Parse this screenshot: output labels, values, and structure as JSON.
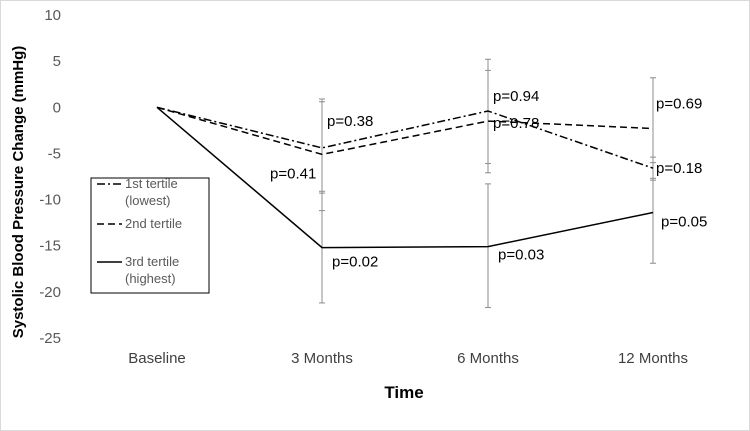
{
  "chart_data": {
    "type": "line",
    "title": "",
    "xlabel": "Time",
    "ylabel": "Systolic Blood Pressure Change (mmHg)",
    "categories": [
      "Baseline",
      "3 Months",
      "6 Months",
      "12 Months"
    ],
    "ylim": [
      -25,
      10
    ],
    "yticks": [
      10,
      5,
      0,
      -5,
      -10,
      -15,
      -20,
      -25
    ],
    "grid": false,
    "legend_position": "left",
    "series": [
      {
        "name": "1st tertile",
        "name_line2": "(lowest)",
        "dash": "dash-dot",
        "values": [
          0,
          -4.4,
          -0.4,
          -6.6
        ],
        "error_low": [
          null,
          -9.3,
          -6.1,
          -7.9
        ],
        "error_high": [
          null,
          0.6,
          5.2,
          -5.4
        ],
        "p_values": [
          null,
          "p=0.38",
          "p=0.94",
          "p=0.18"
        ]
      },
      {
        "name": "2nd tertile",
        "name_line2": "",
        "dash": "dashed",
        "values": [
          0,
          -5.1,
          -1.5,
          -2.3
        ],
        "error_low": [
          null,
          -11.2,
          -7.1,
          -7.7
        ],
        "error_high": [
          null,
          0.9,
          4.0,
          3.2
        ],
        "p_values": [
          null,
          "p=0.41",
          "p=0.78",
          "p=0.69"
        ]
      },
      {
        "name": "3rd tertile",
        "name_line2": "(highest)",
        "dash": "solid",
        "values": [
          0,
          -15.2,
          -15.1,
          -11.4
        ],
        "error_low": [
          null,
          -21.2,
          -21.7,
          -16.9
        ],
        "error_high": [
          null,
          -9.1,
          -8.3,
          -6.0
        ],
        "p_values": [
          null,
          "p=0.02",
          "p=0.03",
          "p=0.05"
        ]
      }
    ]
  }
}
